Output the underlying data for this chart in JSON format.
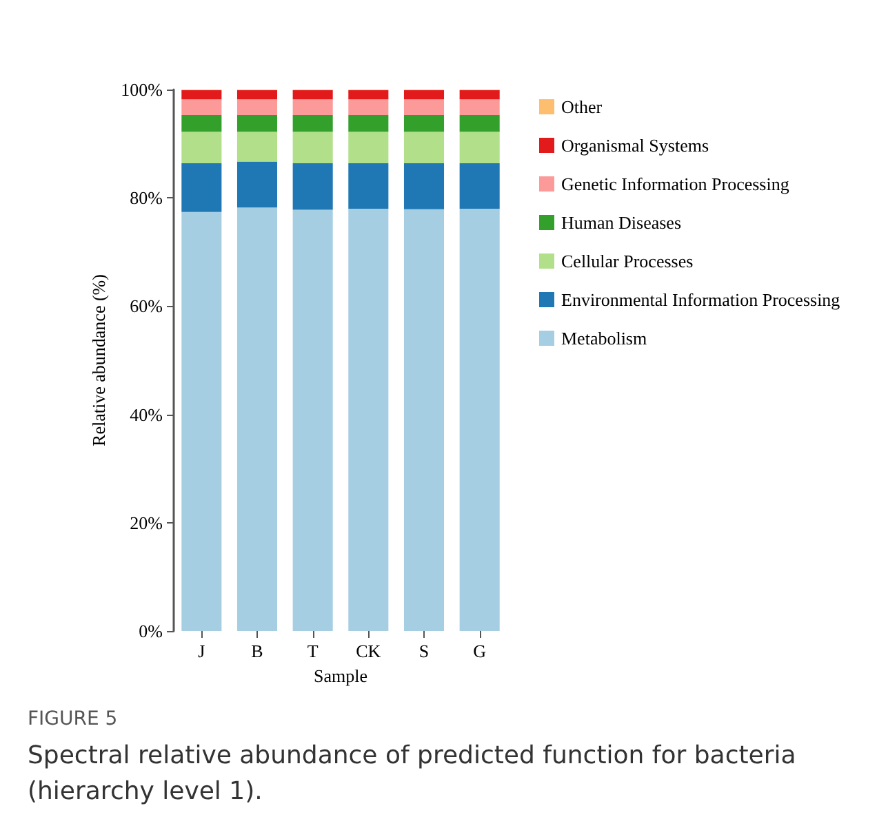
{
  "chart_data": {
    "type": "bar",
    "stacked": true,
    "xlabel": "Sample",
    "ylabel": "Relative abundance (%)",
    "categories": [
      "J",
      "B",
      "T",
      "CK",
      "S",
      "G"
    ],
    "series": [
      {
        "name": "Metabolism",
        "color": "#a6cee3",
        "values": [
          77.4,
          78.2,
          77.8,
          78.0,
          77.9,
          78.0
        ]
      },
      {
        "name": "Environmental Information Processing",
        "color": "#1f78b4",
        "values": [
          9.0,
          8.5,
          8.6,
          8.4,
          8.5,
          8.4
        ]
      },
      {
        "name": "Cellular Processes",
        "color": "#b2df8a",
        "values": [
          5.8,
          5.5,
          5.8,
          5.8,
          5.8,
          5.8
        ]
      },
      {
        "name": "Human Diseases",
        "color": "#33a02c",
        "values": [
          3.1,
          3.1,
          3.1,
          3.1,
          3.1,
          3.1
        ]
      },
      {
        "name": "Genetic Information Processing",
        "color": "#fb9a99",
        "values": [
          2.9,
          2.9,
          2.9,
          2.9,
          2.9,
          2.9
        ]
      },
      {
        "name": "Organismal Systems",
        "color": "#e31a1c",
        "values": [
          1.7,
          1.7,
          1.7,
          1.7,
          1.7,
          1.7
        ]
      },
      {
        "name": "Other",
        "color": "#fdbf6f",
        "values": [
          0.1,
          0.1,
          0.1,
          0.1,
          0.1,
          0.1
        ]
      }
    ],
    "ylim": [
      0,
      100
    ],
    "yticks": [
      {
        "value": 0,
        "label": "0%"
      },
      {
        "value": 20,
        "label": "20%"
      },
      {
        "value": 40,
        "label": "40%"
      },
      {
        "value": 60,
        "label": "60%"
      },
      {
        "value": 80,
        "label": "80%"
      },
      {
        "value": 100,
        "label": "100%"
      }
    ],
    "grid": false,
    "legend": "right",
    "annotations": [
      "FIGURE 5",
      "Spectral relative abundance of predicted function for bacteria (hierarchy level 1)."
    ]
  }
}
